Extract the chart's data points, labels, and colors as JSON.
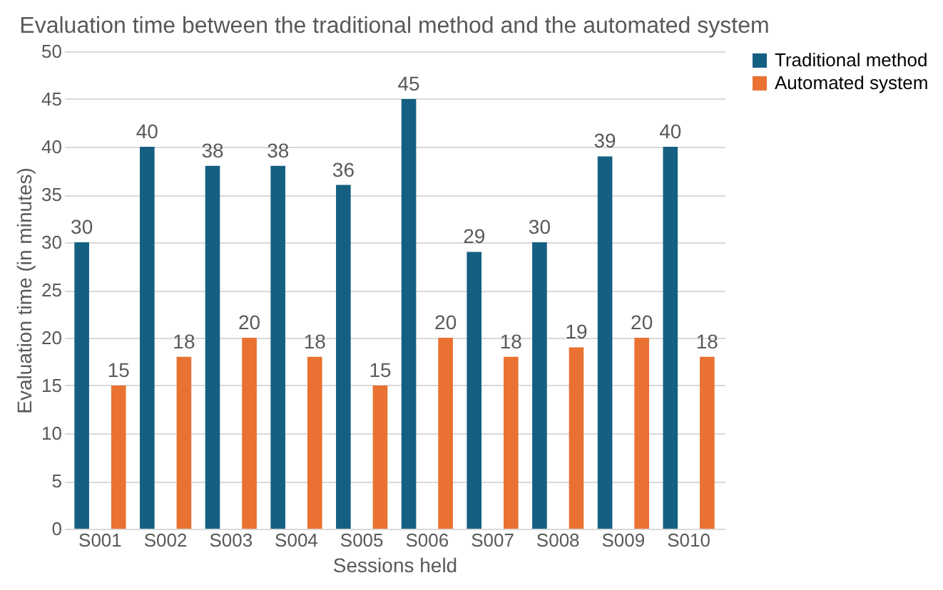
{
  "chart_data": {
    "type": "bar",
    "title": "Evaluation time between the traditional method and the automated system",
    "xlabel": "Sessions held",
    "ylabel": "Evaluation time (in minutes)",
    "categories": [
      "S001",
      "S002",
      "S003",
      "S004",
      "S005",
      "S006",
      "S007",
      "S008",
      "S009",
      "S010"
    ],
    "series": [
      {
        "name": "Traditional method",
        "color": "#156082",
        "values": [
          30,
          40,
          38,
          38,
          36,
          45,
          29,
          30,
          39,
          40
        ]
      },
      {
        "name": "Automated system",
        "color": "#e97132",
        "values": [
          15,
          18,
          20,
          18,
          15,
          20,
          18,
          19,
          20,
          18
        ]
      }
    ],
    "ylim": [
      0,
      50
    ],
    "yticks": [
      0,
      5,
      10,
      15,
      20,
      25,
      30,
      35,
      40,
      45,
      50
    ],
    "grid": "y",
    "legend": "right",
    "data_labels": true
  }
}
